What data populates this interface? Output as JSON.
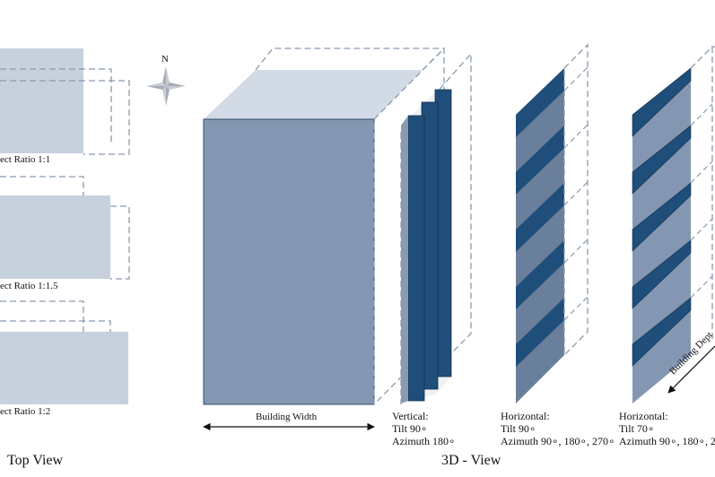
{
  "top_view": {
    "title": "Top View",
    "ratio_1": "ect Ratio 1:1",
    "ratio_2": "ect Ratio 1:1.5",
    "ratio_3": "ect Ratio 1:2"
  },
  "compass": {
    "north": "N"
  },
  "view_3d": {
    "title": "3D - View",
    "building_width": "Building Width",
    "building_depth": "Building Dept"
  },
  "shading": {
    "vertical": {
      "type": "Vertical:",
      "tilt": "Tilt 90∘",
      "azimuth": "Azimuth 180∘"
    },
    "horizontal_90": {
      "type": "Horizontal:",
      "tilt": "Tilt 90∘",
      "azimuth": "Azimuth 90∘, 180∘, 270∘"
    },
    "horizontal_70": {
      "type": "Horizontal:",
      "tilt": "Tilt 70∘",
      "azimuth": "Azimuth 90∘, 180∘, 2"
    }
  },
  "colors": {
    "top_fill": "#c7d0dd",
    "facade": "#8497b2",
    "roof": "#d2dae5",
    "blind_dark": "#1f4e7a",
    "blind_mid": "#6a7f9b",
    "dash": "#8a9ab0"
  }
}
